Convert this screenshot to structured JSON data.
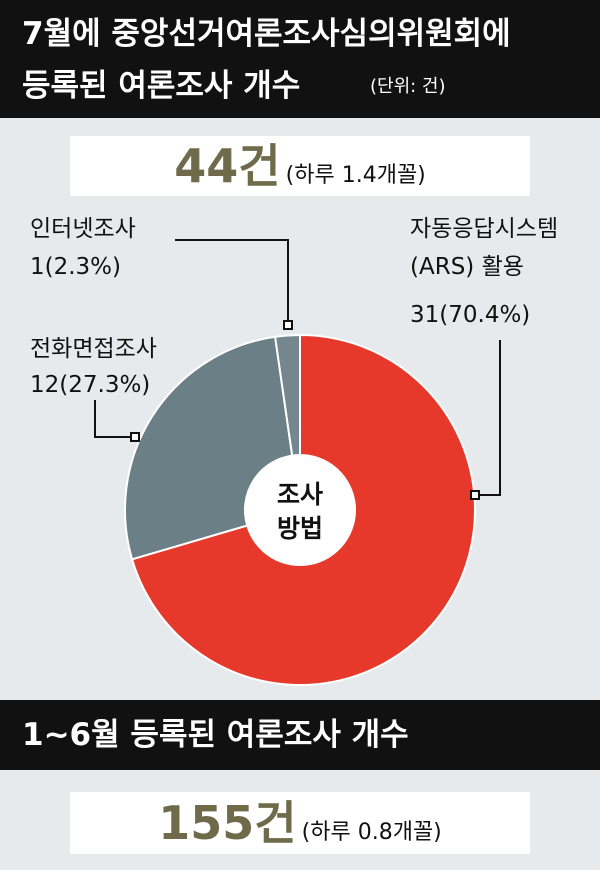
{
  "chart_data": {
    "type": "pie",
    "title": [
      "7월에 중앙선거여론조사심의위원회에",
      "등록된 여론조사 개수"
    ],
    "unit": "(단위: 건)",
    "total": "44건",
    "total_note": "(하루 1.4개꼴)",
    "center_label": [
      "조사",
      "방법"
    ],
    "categories": [
      "자동응답시스템\n(ARS) 활용",
      "전화면접조사",
      "인터넷조사"
    ],
    "values": [
      31,
      12,
      1
    ],
    "value_labels": [
      "31(70.4%)",
      "12(27.3%)",
      "1(2.3%)"
    ],
    "colors": [
      "#e6392b",
      "#6b7f86",
      "#75878e"
    ]
  },
  "footer": {
    "title": "1~6월 등록된 여론조사 개수",
    "total": "155건",
    "total_note": "(하루 0.8개꼴)"
  }
}
